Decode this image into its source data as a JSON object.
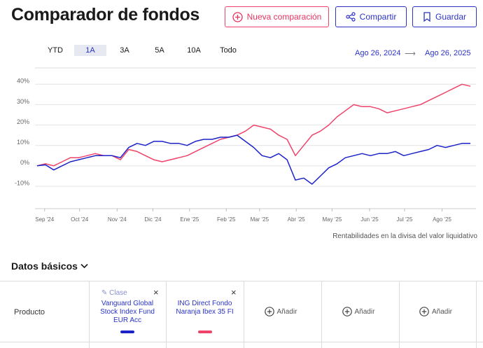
{
  "header": {
    "title": "Comparador de fondos",
    "buttons": [
      "Nueva comparación",
      "Compartir",
      "Guardar"
    ]
  },
  "ranges": {
    "tabs": [
      "YTD",
      "1A",
      "3A",
      "5A",
      "10A",
      "Todo"
    ],
    "active": "1A",
    "start": "Ago 26, 2024",
    "end": "Ago 26, 2025"
  },
  "chart_data": {
    "type": "line",
    "xlim": [
      0,
      52
    ],
    "xticks": [
      {
        "value": 0.9,
        "label": "Sep '24"
      },
      {
        "value": 5.1,
        "label": "Oct '24"
      },
      {
        "value": 9.6,
        "label": "Nov '24"
      },
      {
        "value": 13.9,
        "label": "Dic '24"
      },
      {
        "value": 18.3,
        "label": "Ene '25"
      },
      {
        "value": 22.7,
        "label": "Feb '25"
      },
      {
        "value": 26.7,
        "label": "Mar '25"
      },
      {
        "value": 31.1,
        "label": "Abr '25"
      },
      {
        "value": 35.4,
        "label": "May '25"
      },
      {
        "value": 39.9,
        "label": "Jun '25"
      },
      {
        "value": 44.1,
        "label": "Jul '25"
      },
      {
        "value": 48.6,
        "label": "Ago '25"
      }
    ],
    "ylim": [
      -21,
      48
    ],
    "yticks": [
      {
        "value": -10,
        "label": "-10%"
      },
      {
        "value": 0,
        "label": "0%"
      },
      {
        "value": 10,
        "label": "10%"
      },
      {
        "value": 20,
        "label": "20%"
      },
      {
        "value": 30,
        "label": "30%"
      },
      {
        "value": 40,
        "label": "40%"
      }
    ],
    "grid": true,
    "note": "Rentabilidades en la divisa del valor liquidativo",
    "series": [
      {
        "name": "Vanguard Global Stock Index Fund EUR Acc",
        "color": "#1c22c9",
        "values": [
          0,
          0.5,
          -2,
          0,
          2,
          3,
          4,
          5,
          5,
          5,
          4,
          9,
          11,
          10,
          12,
          12,
          11,
          11,
          10,
          12,
          13,
          13,
          14,
          14,
          15,
          12,
          9,
          5,
          4,
          6,
          3,
          -7,
          -6,
          -9,
          -5,
          -1,
          1,
          4,
          5,
          6,
          5,
          6,
          6,
          7,
          5,
          6,
          7,
          8,
          10,
          9,
          10,
          11,
          11
        ]
      },
      {
        "name": "ING Direct Fondo Naranja Ibex 35 FI",
        "color": "#f0436a",
        "values": [
          0,
          1,
          0,
          2,
          4,
          4,
          5,
          6,
          5,
          5,
          3,
          8,
          7,
          5,
          3,
          2,
          3,
          4,
          5,
          7,
          9,
          11,
          13,
          14,
          15,
          17,
          20,
          19,
          18,
          15,
          13,
          5,
          10,
          15,
          17,
          20,
          24,
          27,
          30,
          29,
          29,
          28,
          26,
          27,
          28,
          29,
          30,
          32,
          34,
          36,
          38,
          40,
          39
        ]
      }
    ]
  },
  "basics": {
    "title": "Datos básicos",
    "row_label": "Producto",
    "class_label": "Clase",
    "add_label": "Añadir"
  }
}
